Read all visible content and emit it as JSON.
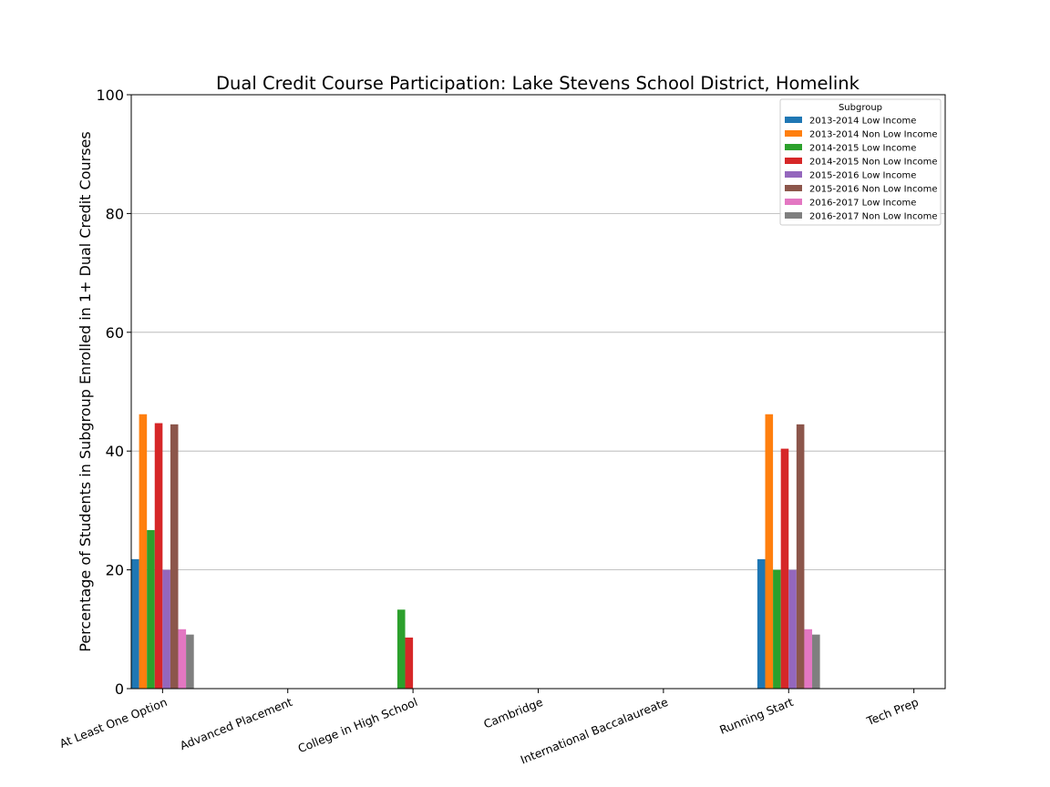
{
  "chart_data": {
    "type": "bar",
    "title": "Dual Credit Course Participation: Lake Stevens School District, Homelink",
    "xlabel": "",
    "ylabel": "Percentage of Students in Subgroup Enrolled in 1+ Dual Credit Courses",
    "ylim": [
      0,
      100
    ],
    "yticks": [
      0,
      20,
      40,
      60,
      80,
      100
    ],
    "grid": "horizontal",
    "legend_title": "Subgroup",
    "legend_placement": "top-right",
    "categories": [
      "At Least One Option",
      "Advanced Placement",
      "College in High School",
      "Cambridge",
      "International Baccalaureate",
      "Running Start",
      "Tech Prep"
    ],
    "series": [
      {
        "name": "2013-2014 Low Income",
        "color": "#1f77b4",
        "values": [
          21.8,
          0,
          0,
          0,
          0,
          21.8,
          0
        ]
      },
      {
        "name": "2013-2014 Non Low Income",
        "color": "#ff7f0e",
        "values": [
          46.2,
          0,
          0,
          0,
          0,
          46.2,
          0
        ]
      },
      {
        "name": "2014-2015 Low Income",
        "color": "#2ca02c",
        "values": [
          26.7,
          0,
          13.3,
          0,
          0,
          20.0,
          0
        ]
      },
      {
        "name": "2014-2015 Non Low Income",
        "color": "#d62728",
        "values": [
          44.7,
          0,
          8.6,
          0,
          0,
          40.4,
          0
        ]
      },
      {
        "name": "2015-2016 Low Income",
        "color": "#9467bd",
        "values": [
          20.0,
          0,
          0,
          0,
          0,
          20.0,
          0
        ]
      },
      {
        "name": "2015-2016 Non Low Income",
        "color": "#8c564b",
        "values": [
          44.5,
          0,
          0,
          0,
          0,
          44.5,
          0
        ]
      },
      {
        "name": "2016-2017 Low Income",
        "color": "#e377c2",
        "values": [
          10.0,
          0,
          0,
          0,
          0,
          10.0,
          0
        ]
      },
      {
        "name": "2016-2017 Non Low Income",
        "color": "#7f7f7f",
        "values": [
          9.1,
          0,
          0,
          0,
          0,
          9.1,
          0
        ]
      }
    ]
  }
}
